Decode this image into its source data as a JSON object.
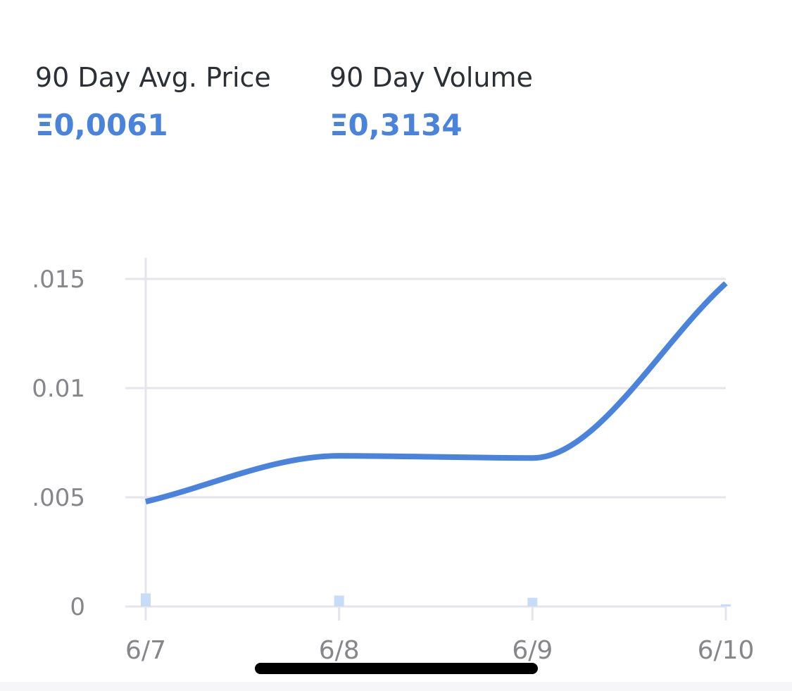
{
  "stats": [
    {
      "label": "90 Day Avg. Price",
      "value": "Ξ0,0061"
    },
    {
      "label": "90 Day Volume",
      "value": "Ξ0,3134"
    }
  ],
  "colors": {
    "accent": "#4a83db",
    "volume_bar": "#c7dcf7",
    "grid": "#e4e6ec",
    "tick_text": "#86868b"
  },
  "chart_data": {
    "type": "line",
    "title": "",
    "xlabel": "",
    "ylabel": "",
    "x": [
      "6/7",
      "6/8",
      "6/9",
      "6/10"
    ],
    "ylim": [
      0,
      0.015
    ],
    "y_ticks": [
      ".015",
      "0.01",
      ".005",
      "0"
    ],
    "grid": true,
    "series": [
      {
        "type": "line",
        "values": [
          0.0048,
          0.0069,
          0.0068,
          0.0148
        ]
      },
      {
        "type": "bar",
        "values": [
          0.0006,
          0.0005,
          0.0004,
          0.0001
        ]
      }
    ]
  }
}
